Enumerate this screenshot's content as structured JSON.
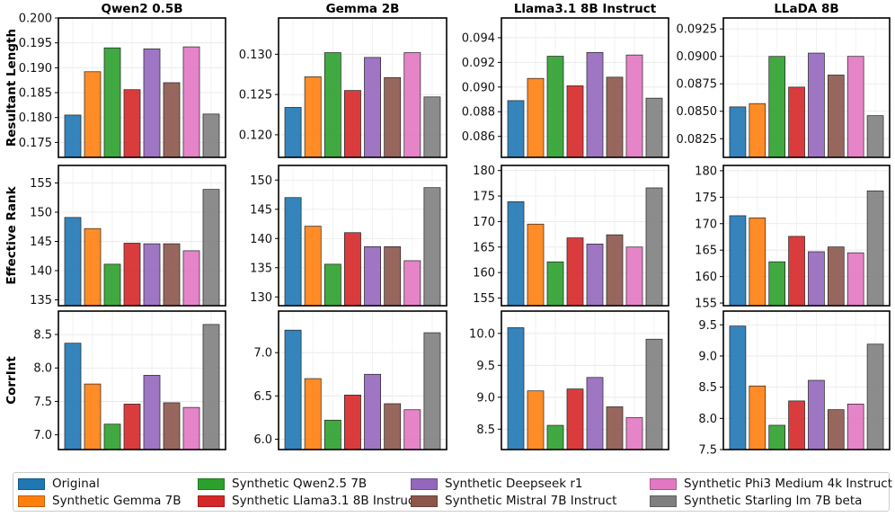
{
  "legend": [
    {
      "name": "Original",
      "color": "#1f77b4"
    },
    {
      "name": "Synthetic Gemma 7B",
      "color": "#ff7f0e"
    },
    {
      "name": "Synthetic Qwen2.5 7B",
      "color": "#2ca02c"
    },
    {
      "name": "Synthetic Llama3.1 8B Instruct",
      "color": "#d62728"
    },
    {
      "name": "Synthetic Deepseek r1",
      "color": "#9467bd"
    },
    {
      "name": "Synthetic Mistral 7B Instruct",
      "color": "#8c564b"
    },
    {
      "name": "Synthetic Phi3 Medium 4k Instruct",
      "color": "#e377c2"
    },
    {
      "name": "Synthetic Starling lm 7B beta",
      "color": "#7f7f7f"
    }
  ],
  "chart_data": [
    {
      "type": "bar",
      "title": "Qwen2 0.5B",
      "ylabel": "Resultant Length",
      "ylim": [
        0.172,
        0.2
      ],
      "yticks": [
        0.175,
        0.18,
        0.185,
        0.19,
        0.195,
        0.2
      ],
      "ytick_labels": [
        "0.175",
        "0.180",
        "0.185",
        "0.190",
        "0.195",
        "0.200"
      ],
      "values": [
        0.1805,
        0.1892,
        0.194,
        0.1856,
        0.1938,
        0.187,
        0.1942,
        0.1807
      ]
    },
    {
      "type": "bar",
      "title": "Gemma 2B",
      "ylabel": "",
      "ylim": [
        0.1172,
        0.1345
      ],
      "yticks": [
        0.12,
        0.125,
        0.13
      ],
      "ytick_labels": [
        "0.120",
        "0.125",
        "0.130"
      ],
      "values": [
        0.1234,
        0.1272,
        0.1302,
        0.1255,
        0.1296,
        0.1271,
        0.1302,
        0.1247
      ]
    },
    {
      "type": "bar",
      "title": "Llama3.1 8B Instruct",
      "ylabel": "",
      "ylim": [
        0.0843,
        0.0956
      ],
      "yticks": [
        0.086,
        0.088,
        0.09,
        0.092,
        0.094
      ],
      "ytick_labels": [
        "0.086",
        "0.088",
        "0.090",
        "0.092",
        "0.094"
      ],
      "values": [
        0.0889,
        0.0907,
        0.0925,
        0.0901,
        0.0928,
        0.0908,
        0.0926,
        0.0891
      ]
    },
    {
      "type": "bar",
      "title": "LLaDA 8B",
      "ylabel": "",
      "ylim": [
        0.0808,
        0.0935
      ],
      "yticks": [
        0.0825,
        0.085,
        0.0875,
        0.09,
        0.0925
      ],
      "ytick_labels": [
        "0.0825",
        "0.0850",
        "0.0875",
        "0.0900",
        "0.0925"
      ],
      "values": [
        0.0854,
        0.0857,
        0.09,
        0.0872,
        0.0903,
        0.0883,
        0.09,
        0.0846
      ]
    },
    {
      "type": "bar",
      "title": "",
      "ylabel": "Effective Rank",
      "ylim": [
        134,
        158
      ],
      "yticks": [
        135,
        140,
        145,
        150,
        155
      ],
      "ytick_labels": [
        "135",
        "140",
        "145",
        "150",
        "155"
      ],
      "values": [
        149.1,
        147.2,
        141.1,
        144.7,
        144.6,
        144.6,
        143.4,
        153.9
      ]
    },
    {
      "type": "bar",
      "title": "",
      "ylabel": "",
      "ylim": [
        128.5,
        152.5
      ],
      "yticks": [
        130,
        135,
        140,
        145,
        150
      ],
      "ytick_labels": [
        "130",
        "135",
        "140",
        "145",
        "150"
      ],
      "values": [
        147.0,
        142.1,
        135.6,
        141.0,
        138.6,
        138.6,
        136.2,
        148.7
      ]
    },
    {
      "type": "bar",
      "title": "",
      "ylabel": "",
      "ylim": [
        153.5,
        181
      ],
      "yticks": [
        155,
        160,
        165,
        170,
        175,
        180
      ],
      "ytick_labels": [
        "155",
        "160",
        "165",
        "170",
        "175",
        "180"
      ],
      "values": [
        173.9,
        169.5,
        162.1,
        166.8,
        165.6,
        167.4,
        165.0,
        176.6
      ]
    },
    {
      "type": "bar",
      "title": "",
      "ylabel": "",
      "ylim": [
        154.5,
        181
      ],
      "yticks": [
        155,
        160,
        165,
        170,
        175,
        180
      ],
      "ytick_labels": [
        "155",
        "160",
        "165",
        "170",
        "175",
        "180"
      ],
      "values": [
        171.5,
        171.1,
        162.8,
        167.6,
        164.7,
        165.6,
        164.5,
        176.2
      ]
    },
    {
      "type": "bar",
      "title": "",
      "ylabel": "CorrInt",
      "ylim": [
        6.78,
        8.85
      ],
      "yticks": [
        7.0,
        7.5,
        8.0,
        8.5
      ],
      "ytick_labels": [
        "7.0",
        "7.5",
        "8.0",
        "8.5"
      ],
      "values": [
        8.37,
        7.76,
        7.16,
        7.46,
        7.89,
        7.48,
        7.41,
        8.65
      ]
    },
    {
      "type": "bar",
      "title": "",
      "ylabel": "",
      "ylim": [
        5.88,
        7.48
      ],
      "yticks": [
        6.0,
        6.5,
        7.0
      ],
      "ytick_labels": [
        "6.0",
        "6.5",
        "7.0"
      ],
      "values": [
        7.26,
        6.7,
        6.22,
        6.51,
        6.75,
        6.41,
        6.34,
        7.23
      ]
    },
    {
      "type": "bar",
      "title": "",
      "ylabel": "",
      "ylim": [
        8.18,
        10.35
      ],
      "yticks": [
        8.5,
        9.0,
        9.5,
        10.0
      ],
      "ytick_labels": [
        "8.5",
        "9.0",
        "9.5",
        "10.0"
      ],
      "values": [
        10.09,
        9.1,
        8.56,
        9.13,
        9.31,
        8.85,
        8.68,
        9.91
      ]
    },
    {
      "type": "bar",
      "title": "",
      "ylabel": "",
      "ylim": [
        7.5,
        9.72
      ],
      "yticks": [
        7.5,
        8.0,
        8.5,
        9.0,
        9.5
      ],
      "ytick_labels": [
        "7.5",
        "8.0",
        "8.5",
        "9.0",
        "9.5"
      ],
      "values": [
        9.48,
        8.52,
        7.89,
        8.28,
        8.61,
        8.14,
        8.23,
        9.19
      ]
    }
  ]
}
